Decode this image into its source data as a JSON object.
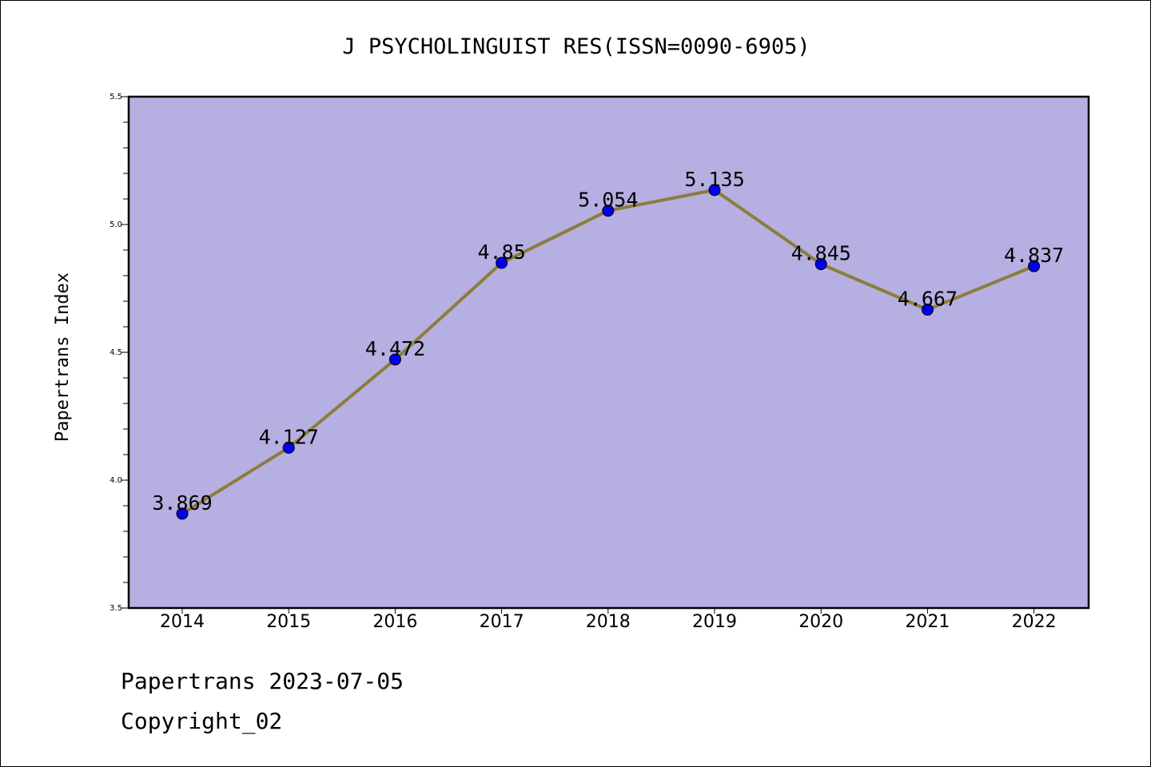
{
  "chart_data": {
    "type": "line",
    "title": "J PSYCHOLINGUIST RES(ISSN=0090-6905)",
    "xlabel": "",
    "ylabel": "Papertrans Index",
    "categories": [
      "2014",
      "2015",
      "2016",
      "2017",
      "2018",
      "2019",
      "2020",
      "2021",
      "2022"
    ],
    "values": [
      3.869,
      4.127,
      4.472,
      4.85,
      5.054,
      5.135,
      4.845,
      4.667,
      4.837
    ],
    "data_labels": [
      "3.869",
      "4.127",
      "4.472",
      "4.85",
      "5.054",
      "5.135",
      "4.845",
      "4.667",
      "4.837"
    ],
    "ylim": [
      3.5,
      5.5
    ],
    "yticks": [
      "3.5",
      "4.0",
      "4.5",
      "5.0",
      "5.5"
    ],
    "grid": false,
    "colors": {
      "plot_background": "#b5afe2",
      "line": "#8b7d3a",
      "marker": "#0000ee",
      "axes": "#000000"
    }
  },
  "footer": {
    "line1": "Papertrans 2023-07-05",
    "line2": "Copyright_02"
  }
}
